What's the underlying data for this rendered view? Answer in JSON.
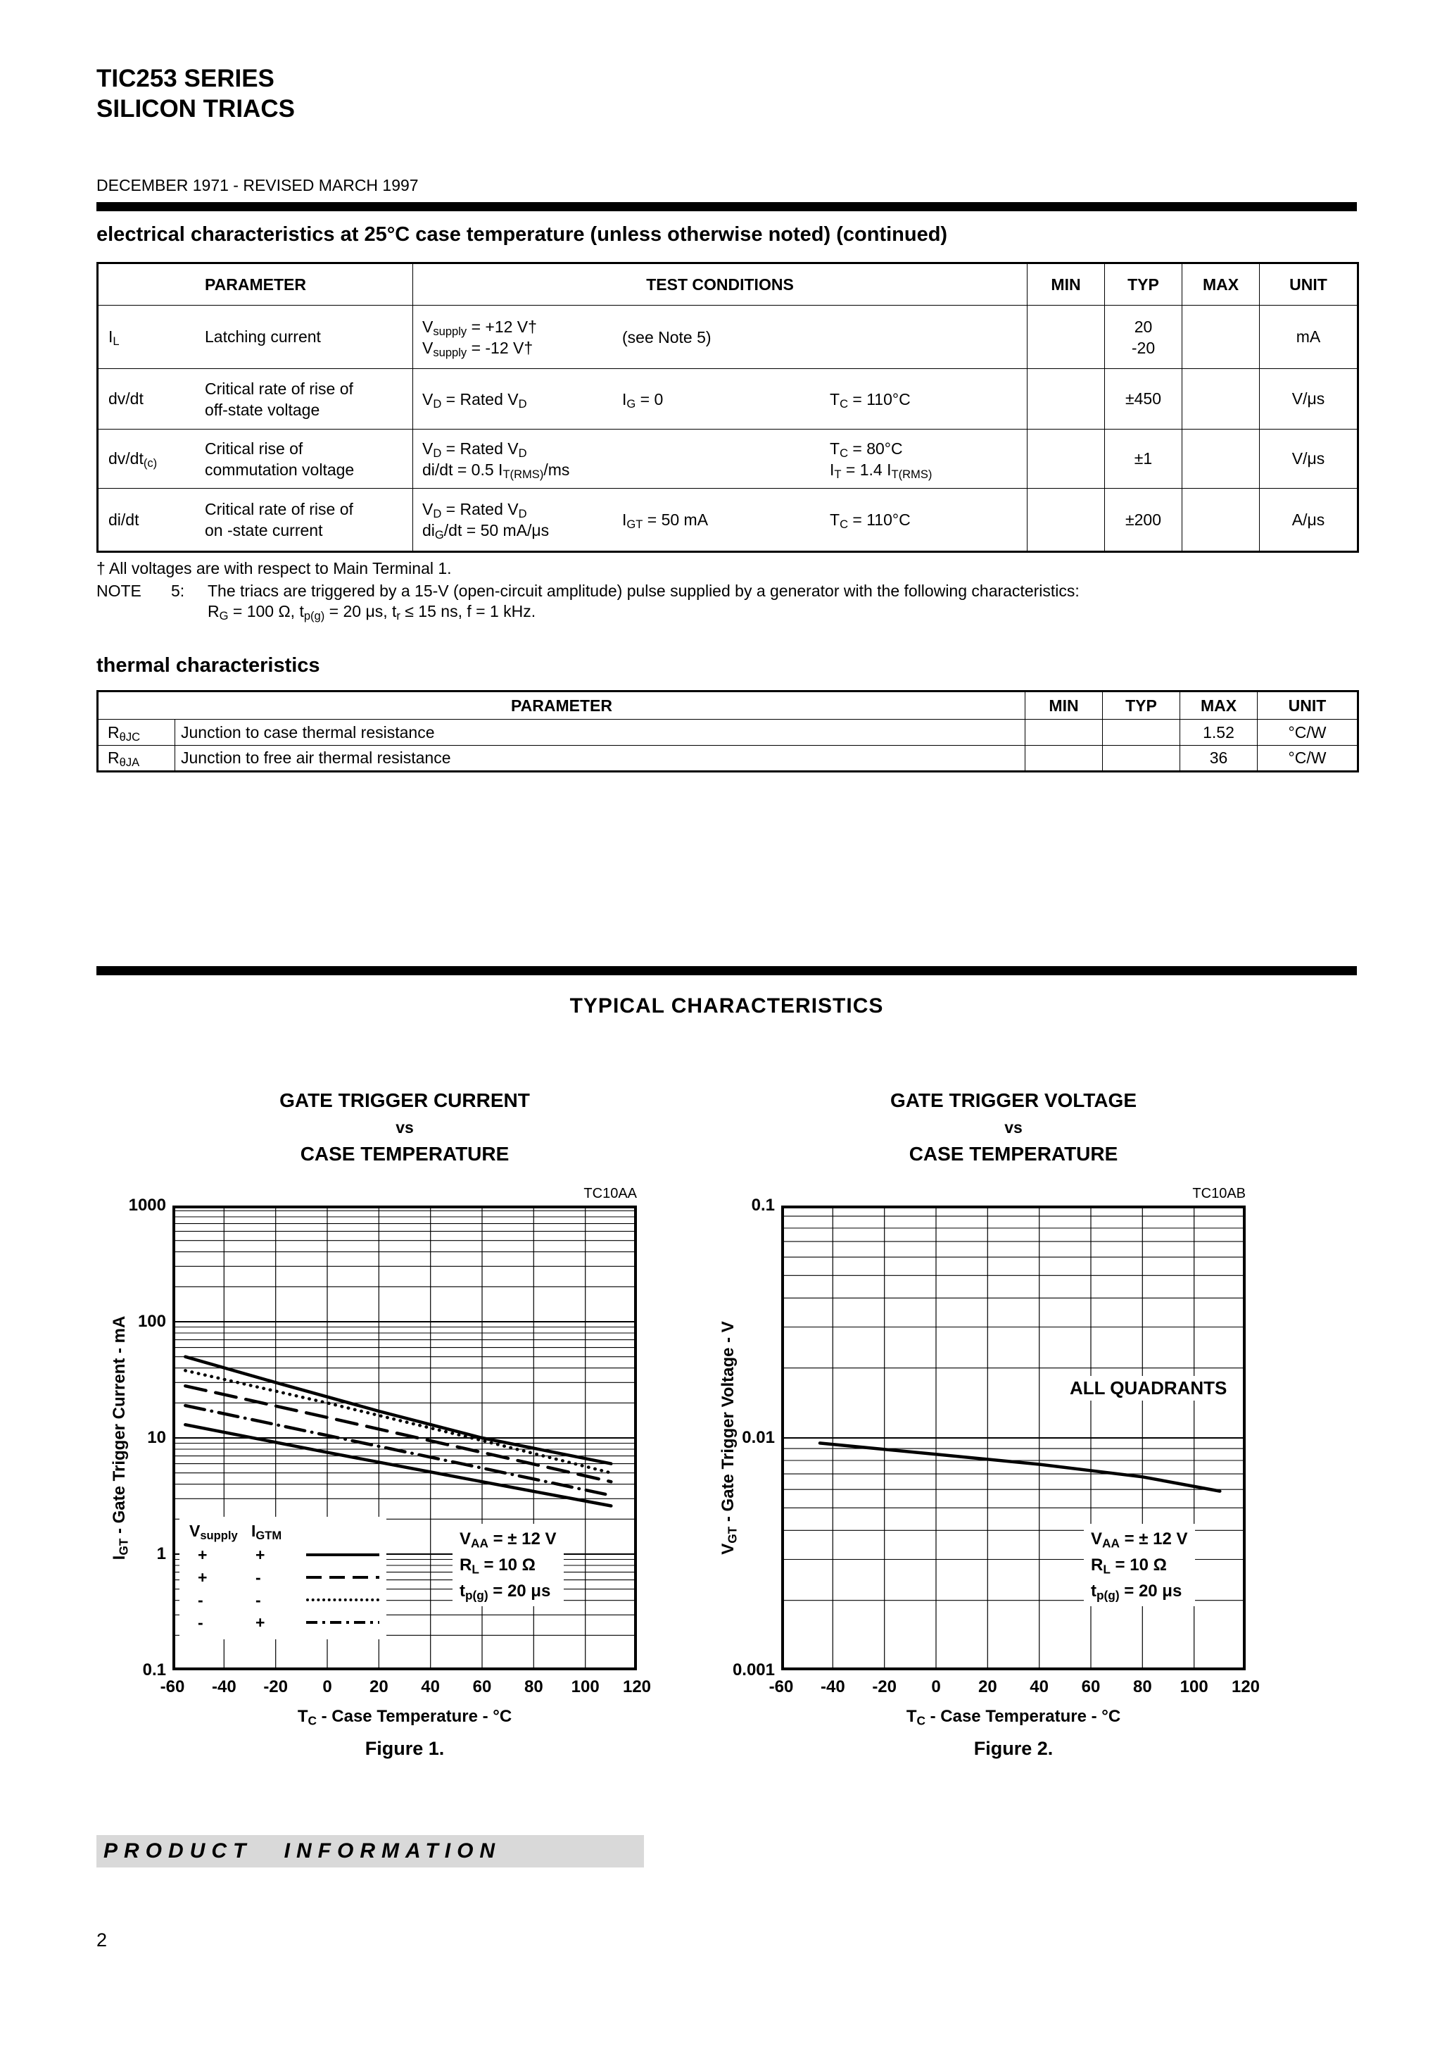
{
  "header": {
    "title_line1": "TIC253 SERIES",
    "title_line2": "SILICON TRIACS",
    "revision": "DECEMBER 1971 - REVISED MARCH 1997"
  },
  "electrical": {
    "heading": "electrical characteristics at 25°C case temperature (unless otherwise noted) (continued)",
    "headers": {
      "parameter": "PARAMETER",
      "conditions": "TEST CONDITIONS",
      "min": "MIN",
      "typ": "TYP",
      "max": "MAX",
      "unit": "UNIT"
    },
    "rows": [
      {
        "symbol": "I_{L}",
        "name_a": "Latching current",
        "cond1a": "V_{supply} = +12 V†",
        "cond1b": "V_{supply} =  -12 V†",
        "cond2": "(see Note 5)",
        "typ_a": "20",
        "typ_b": "-20",
        "unit": "mA"
      },
      {
        "symbol": "dv/dt",
        "name_a": "Critical rate of rise of",
        "name_b": "off-state voltage",
        "cond1a": "V_{D} = Rated V_{D}",
        "cond2": "I_{G} = 0",
        "cond3a": "T_{C} = 110°C",
        "typ_a": "±450",
        "unit": "V/μs"
      },
      {
        "symbol": "dv/dt_{(c)}",
        "name_a": "Critical rise of",
        "name_b": "commutation voltage",
        "cond1a": "V_{D} = Rated V_{D}",
        "cond1b": "di/dt = 0.5 I_{T(RMS)}/ms",
        "cond3a": "T_{C} = 80°C",
        "cond3b": "I_{T} = 1.4 I_{T(RMS)}",
        "typ_a": "±1",
        "unit": "V/μs"
      },
      {
        "symbol": "di/dt",
        "name_a": "Critical rate of rise of",
        "name_b": "on -state current",
        "cond1a": "V_{D} = Rated V_{D}",
        "cond1b": "di_{G}/dt = 50 mA/μs",
        "cond2": "I_{GT} = 50 mA",
        "cond3a": "T_{C} = 110°C",
        "typ_a": "±200",
        "unit": "A/μs"
      }
    ],
    "footnote_dagger": "† All voltages are with respect to Main Terminal 1.",
    "note5_label": "NOTE",
    "note5_num": "5:",
    "note5_line1": "The triacs are triggered by a 15-V (open-circuit amplitude) pulse supplied by a generator with the following characteristics:",
    "note5_line2": "R_{G} = 100 Ω, t_{p(g)} = 20 μs, t_{r} ≤ 15 ns, f = 1 kHz."
  },
  "thermal": {
    "heading": "thermal characteristics",
    "headers": {
      "parameter": "PARAMETER",
      "min": "MIN",
      "typ": "TYP",
      "max": "MAX",
      "unit": "UNIT"
    },
    "rows": [
      {
        "symbol": "R_{θJC}",
        "name": "Junction to case thermal resistance",
        "max": "1.52",
        "unit": "°C/W"
      },
      {
        "symbol": "R_{θJA}",
        "name": "Junction to free air thermal resistance",
        "max": "36",
        "unit": "°C/W"
      }
    ]
  },
  "typical_heading": "TYPICAL CHARACTERISTICS",
  "figures": {
    "fig1": {
      "title1": "GATE TRIGGER CURRENT",
      "vs": "vs",
      "title2": "CASE TEMPERATURE",
      "code": "TC10AA",
      "ylabel": "I_{GT} - Gate Trigger Current - mA",
      "xlabel": "T_{C} - Case Temperature - °C",
      "caption": "Figure 1.",
      "legend": {
        "col1_header": "V_{supply}",
        "col2_header": "I_{GTM}",
        "rows": [
          {
            "s1": "+",
            "s2": "+",
            "style": "solid"
          },
          {
            "s1": "+",
            "s2": "-",
            "style": "dashed"
          },
          {
            "s1": "-",
            "s2": "-",
            "style": "dotted"
          },
          {
            "s1": "-",
            "s2": "+",
            "style": "dashdot"
          }
        ]
      },
      "conditions": [
        "V_{AA} = ± 12 V",
        "R_{L} = 10 Ω",
        "t_{p(g)} = 20 μs"
      ]
    },
    "fig2": {
      "title1": "GATE TRIGGER VOLTAGE",
      "vs": "vs",
      "title2": "CASE TEMPERATURE",
      "code": "TC10AB",
      "ylabel": "V_{GT} - Gate Trigger Voltage - V",
      "xlabel": "T_{C} - Case Temperature - °C",
      "caption": "Figure 2.",
      "annotation": "ALL QUADRANTS",
      "conditions": [
        "V_{AA} = ± 12 V",
        "R_{L} = 10 Ω",
        "t_{p(g)} = 20 μs"
      ]
    }
  },
  "chart_data": [
    {
      "figure": "Figure 1",
      "type": "line",
      "title": "Gate Trigger Current vs Case Temperature",
      "xlabel": "TC - Case Temperature - °C",
      "ylabel": "IGT - Gate Trigger Current - mA",
      "x_axis": {
        "min": -60,
        "max": 120,
        "tick_step": 20
      },
      "y_axis": {
        "scale": "log",
        "min": 0.1,
        "max": 1000,
        "ticks": [
          1000,
          100,
          10,
          1,
          0.1
        ],
        "tick_labels": [
          "1000",
          "100",
          "10",
          "1",
          "0.1"
        ]
      },
      "grid": true,
      "conditions": [
        "VAA = ± 12 V",
        "RL = 10 Ω",
        "tp(g) = 20 μs"
      ],
      "series": [
        {
          "name": "Vsupply +, IGTM +",
          "style": "solid",
          "points": [
            [
              -55,
              50
            ],
            [
              -20,
              30
            ],
            [
              20,
              17
            ],
            [
              60,
              10
            ],
            [
              110,
              6
            ]
          ]
        },
        {
          "name": "Vsupply +, IGTM -",
          "style": "dashed",
          "points": [
            [
              -55,
              28
            ],
            [
              0,
              15
            ],
            [
              60,
              7.5
            ],
            [
              110,
              4.2
            ]
          ]
        },
        {
          "name": "Vsupply -, IGTM -",
          "style": "dotted",
          "points": [
            [
              -55,
              38
            ],
            [
              0,
              20
            ],
            [
              60,
              9.5
            ],
            [
              110,
              5
            ]
          ]
        },
        {
          "name": "Vsupply -, IGTM +",
          "style": "dashdot",
          "points": [
            [
              -55,
              19
            ],
            [
              0,
              10.5
            ],
            [
              60,
              5.5
            ],
            [
              110,
              3.2
            ]
          ]
        },
        {
          "name": "Vsupply +, IGTM + (lower branch)",
          "style": "solid",
          "points": [
            [
              -55,
              13
            ],
            [
              0,
              7.5
            ],
            [
              60,
              4.2
            ],
            [
              110,
              2.6
            ]
          ]
        }
      ]
    },
    {
      "figure": "Figure 2",
      "type": "line",
      "title": "Gate Trigger Voltage vs Case Temperature",
      "xlabel": "TC - Case Temperature - °C",
      "ylabel": "VGT - Gate Trigger Voltage - V",
      "x_axis": {
        "min": -60,
        "max": 120,
        "tick_step": 20
      },
      "y_axis": {
        "scale": "log",
        "min": 0.001,
        "max": 0.1,
        "ticks": [
          0.1,
          0.01,
          0.001
        ],
        "tick_labels": [
          "0.1",
          "0.01",
          "0.001"
        ]
      },
      "grid": true,
      "annotation": "ALL QUADRANTS",
      "conditions": [
        "VAA = ± 12 V",
        "RL = 10 Ω",
        "tp(g) = 20 μs"
      ],
      "series": [
        {
          "name": "ALL QUADRANTS",
          "style": "solid",
          "points": [
            [
              -45,
              0.0095
            ],
            [
              0,
              0.0085
            ],
            [
              40,
              0.0077
            ],
            [
              80,
              0.0068
            ],
            [
              110,
              0.0059
            ]
          ]
        }
      ]
    }
  ],
  "footer": {
    "band_text": "PRODUCT INFORMATION",
    "page_number": "2"
  }
}
